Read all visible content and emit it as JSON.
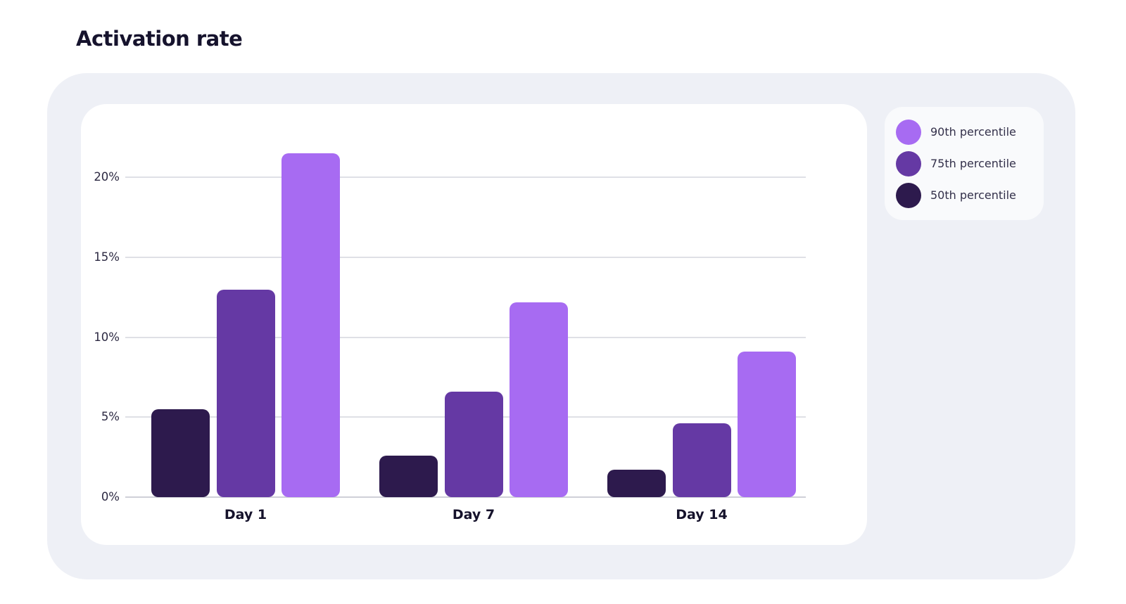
{
  "title": "Activation rate",
  "chart_data": {
    "type": "bar",
    "title": "Activation rate",
    "categories": [
      "Day 1",
      "Day 7",
      "Day 14"
    ],
    "series": [
      {
        "name": "90th percentile",
        "color": "#a76bf2",
        "values": [
          21.5,
          12.2,
          9.1
        ]
      },
      {
        "name": "75th percentile",
        "color": "#6539a4",
        "values": [
          13.0,
          6.6,
          4.6
        ]
      },
      {
        "name": "50th percentile",
        "color": "#2d1a4d",
        "values": [
          5.5,
          2.6,
          1.7
        ]
      }
    ],
    "xlabel": "",
    "ylabel": "",
    "ylim": [
      0,
      22
    ],
    "y_ticks": [
      {
        "value": 0,
        "label": "0%"
      },
      {
        "value": 5,
        "label": "5%"
      },
      {
        "value": 10,
        "label": "10%"
      },
      {
        "value": 15,
        "label": "15%"
      },
      {
        "value": 20,
        "label": "20%"
      }
    ],
    "grid": true,
    "legend_position": "top-right"
  },
  "colors": {
    "page_bg": "#ffffff",
    "panel_bg": "#eef0f6",
    "card_bg": "#ffffff",
    "legend_bg": "#f9fafc",
    "gridline": "#dfe0e6",
    "axis_baseline": "#cfd0d8",
    "tick_text": "#2c2942",
    "category_text": "#15122b",
    "title_text": "#16132d"
  }
}
